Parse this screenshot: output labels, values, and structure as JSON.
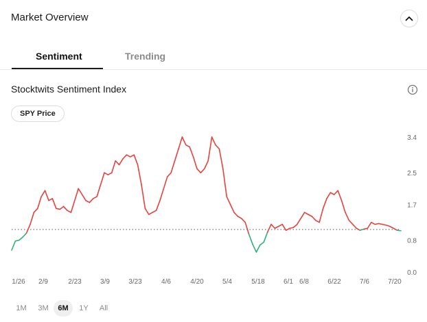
{
  "header": {
    "title": "Market Overview",
    "collapse_icon": "chevron-up-icon"
  },
  "tabs": [
    {
      "label": "Sentiment",
      "active": true
    },
    {
      "label": "Trending",
      "active": false
    }
  ],
  "section": {
    "title": "Stocktwits Sentiment Index",
    "info_icon": "info-icon"
  },
  "pill": {
    "label": "SPY Price"
  },
  "ranges": [
    {
      "label": "1M",
      "active": false
    },
    {
      "label": "3M",
      "active": false
    },
    {
      "label": "6M",
      "active": true
    },
    {
      "label": "1Y",
      "active": false
    },
    {
      "label": "All",
      "active": false
    }
  ],
  "colors": {
    "up": "#e8413c",
    "down": "#2bb37a",
    "baseline": "#555555",
    "axis_text": "#666666"
  },
  "chart_data": {
    "type": "line",
    "title": "",
    "x_ticks": [
      "1/26",
      "2/9",
      "2/23",
      "3/9",
      "3/23",
      "4/6",
      "4/20",
      "5/4",
      "5/18",
      "6/1",
      "6/8",
      "6/22",
      "7/6",
      "7/20"
    ],
    "y_ticks": [
      "3.4",
      "2.5",
      "1.7",
      "0.8",
      "0.0"
    ],
    "ylim": [
      0,
      3.4
    ],
    "baseline": 1.07,
    "series": [
      {
        "values": [
          0.55,
          0.78,
          0.8,
          0.88,
          0.98,
          1.2,
          1.5,
          1.6,
          1.9,
          2.05,
          1.8,
          1.85,
          1.6,
          1.58,
          1.65,
          1.55,
          1.5,
          1.8,
          2.1,
          1.95,
          1.8,
          1.75,
          1.85,
          1.9,
          2.2,
          2.5,
          2.45,
          2.5,
          2.8,
          2.7,
          2.85,
          2.95,
          2.9,
          2.95,
          2.7,
          2.2,
          1.6,
          1.45,
          1.5,
          1.55,
          1.8,
          2.1,
          2.4,
          2.5,
          2.8,
          3.1,
          3.4,
          3.2,
          3.15,
          2.9,
          2.6,
          2.5,
          2.6,
          2.8,
          3.4,
          3.2,
          3.1,
          2.6,
          1.9,
          1.7,
          1.5,
          1.4,
          1.35,
          1.25,
          0.95,
          0.7,
          0.5,
          0.68,
          0.75,
          1.0,
          1.2,
          1.1,
          1.15,
          1.2,
          1.05,
          1.1,
          1.12,
          1.2,
          1.35,
          1.5,
          1.45,
          1.4,
          1.3,
          1.25,
          1.6,
          1.85,
          2.0,
          1.95,
          2.05,
          1.8,
          1.5,
          1.3,
          1.2,
          1.1,
          1.05,
          1.08,
          1.1,
          1.25,
          1.2,
          1.22,
          1.2,
          1.18,
          1.15,
          1.1,
          1.05,
          1.04
        ]
      }
    ]
  }
}
